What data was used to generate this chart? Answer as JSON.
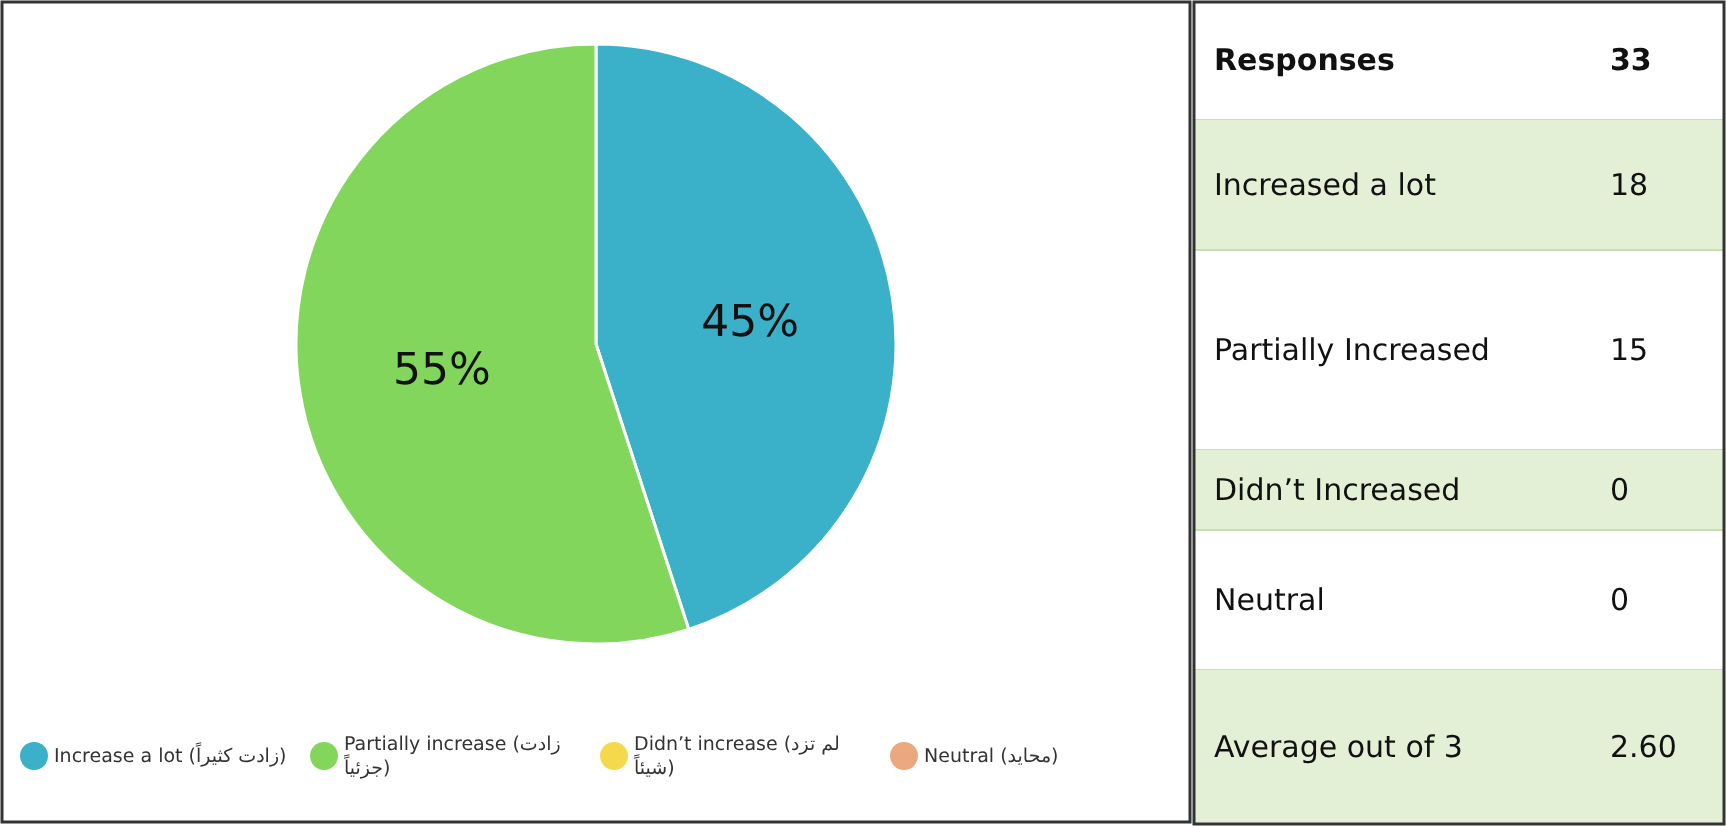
{
  "chart_data": [
    {
      "type": "pie",
      "categories": [
        "Increase a lot (زادت كثيراً)",
        "Partially increase (زادت جزئياً)",
        "Didn’t increase (لم تزد شيئاً)",
        "Neutral (محايد)"
      ],
      "values": [
        45,
        55,
        0,
        0
      ],
      "colors": [
        "#3ab0c9",
        "#82d65c",
        "#f4d94c",
        "#eba77e"
      ],
      "value_labels": [
        "45%",
        "55%",
        null,
        null
      ],
      "legend": "bottom"
    },
    {
      "type": "other",
      "categories": [
        "Responses",
        "Increased a lot",
        "Partially Increased",
        "Didn’t Increased",
        "Neutral",
        "Average out of 3"
      ],
      "value_labels": [
        "33",
        "18",
        "15",
        "0",
        "0",
        "2.60"
      ]
    }
  ]
}
